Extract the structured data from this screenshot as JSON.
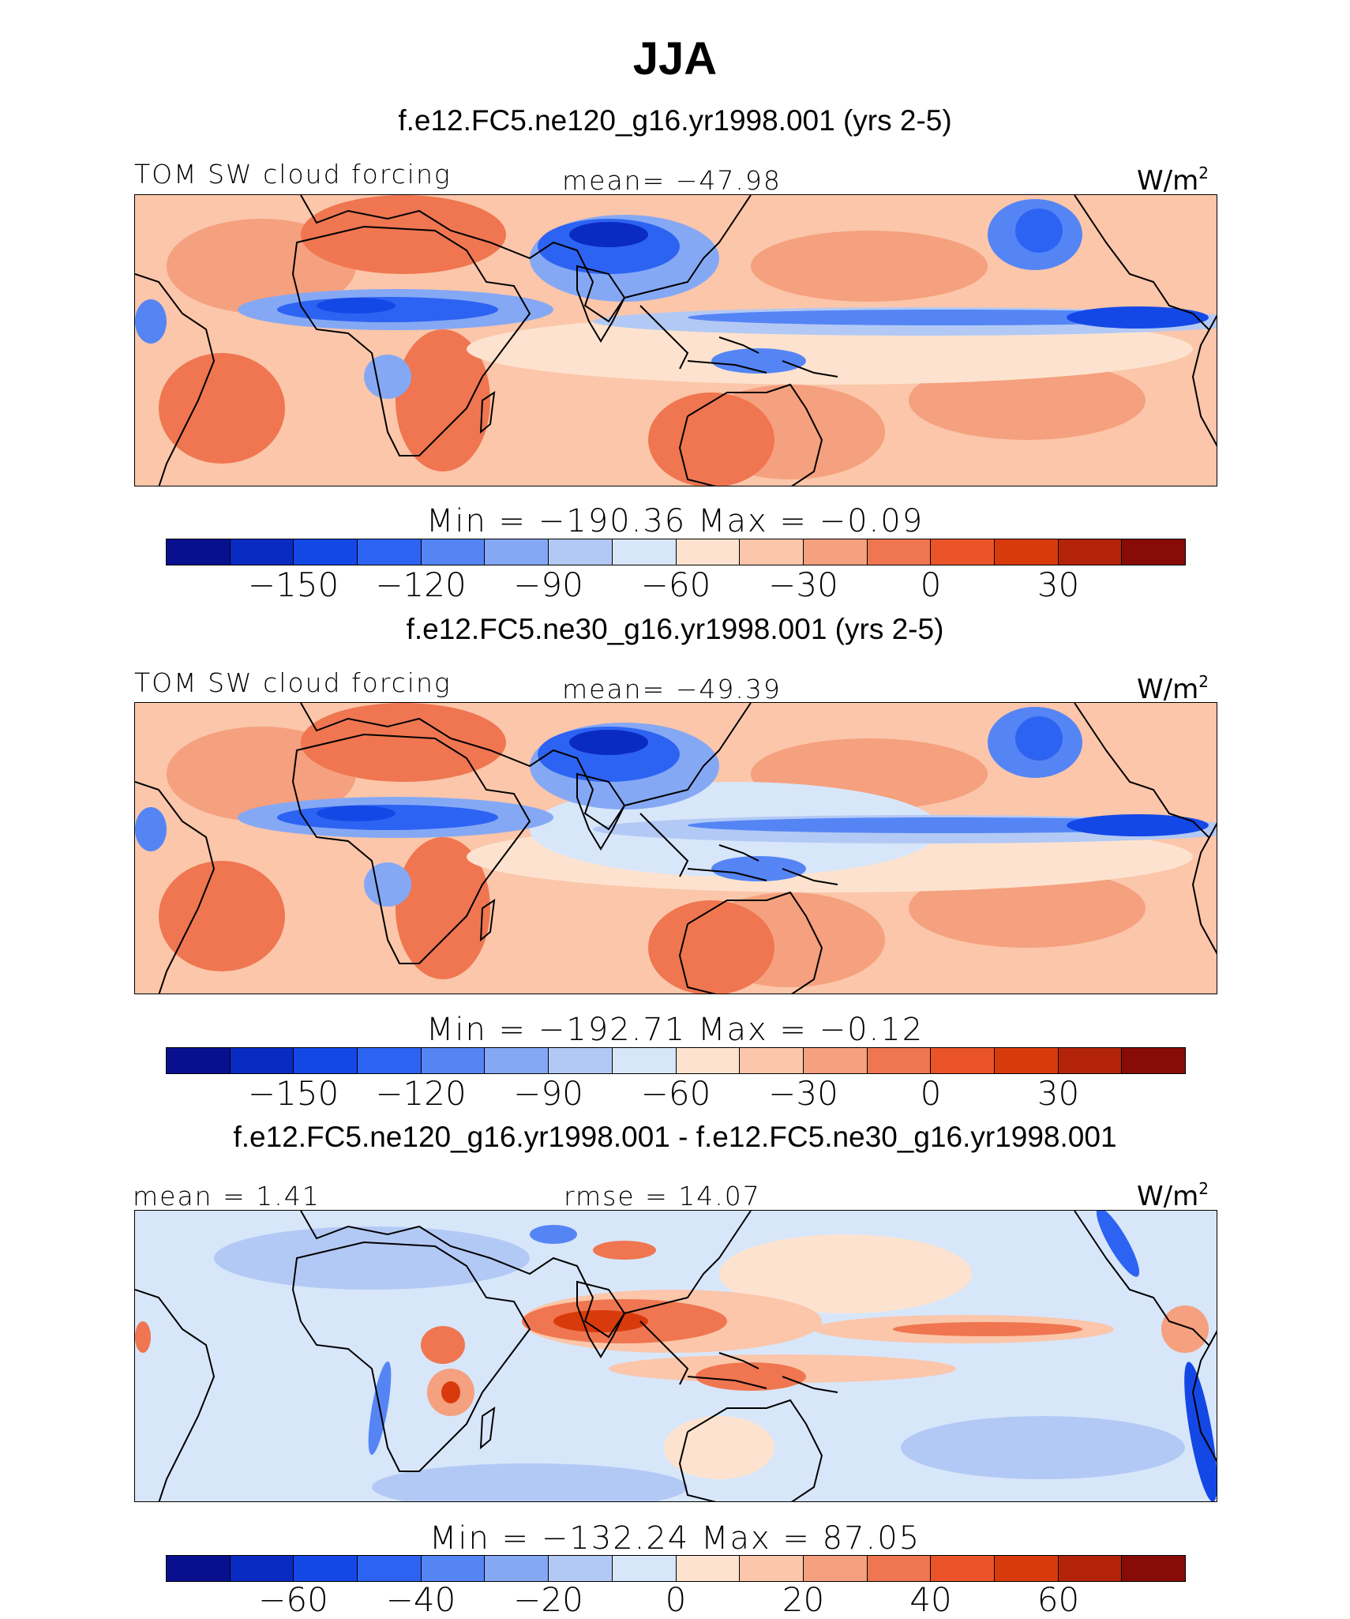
{
  "title": "JJA",
  "panels": [
    {
      "subtitle": "f.e12.FC5.ne120_g16.yr1998.001 (yrs 2-5)",
      "left_label": "TOM  SW  cloud  forcing",
      "center_label": "mean=  −47.98",
      "unit": "W/m",
      "unit_sup": "2",
      "minmax": "Min  =  −190.36  Max  =    −0.09",
      "colorbar_ticks": [
        "−150",
        "−120",
        "−90",
        "−60",
        "−30",
        "0",
        "30"
      ],
      "colorbar_colors": [
        "#08108f",
        "#0a2bc2",
        "#1448e6",
        "#2d63f2",
        "#5585f5",
        "#85a8f5",
        "#b3c9f5",
        "#d8e6fa",
        "#fde3cf",
        "#fbc6aa",
        "#f5a07e",
        "#ef7650",
        "#ea5428",
        "#d93a0c",
        "#b3230a",
        "#870b06"
      ],
      "map": "ne120"
    },
    {
      "subtitle": "f.e12.FC5.ne30_g16.yr1998.001 (yrs 2-5)",
      "left_label": "TOM  SW  cloud  forcing",
      "center_label": "mean=  −49.39",
      "unit": "W/m",
      "unit_sup": "2",
      "minmax": "Min  =  −192.71  Max  =    −0.12",
      "colorbar_ticks": [
        "−150",
        "−120",
        "−90",
        "−60",
        "−30",
        "0",
        "30"
      ],
      "colorbar_colors": [
        "#08108f",
        "#0a2bc2",
        "#1448e6",
        "#2d63f2",
        "#5585f5",
        "#85a8f5",
        "#b3c9f5",
        "#d8e6fa",
        "#fde3cf",
        "#fbc6aa",
        "#f5a07e",
        "#ef7650",
        "#ea5428",
        "#d93a0c",
        "#b3230a",
        "#870b06"
      ],
      "map": "ne30"
    },
    {
      "subtitle": "f.e12.FC5.ne120_g16.yr1998.001 - f.e12.FC5.ne30_g16.yr1998.001",
      "left_label": "mean  =     1.41",
      "center_label": "rmse  =    14.07",
      "unit": "W/m",
      "unit_sup": "2",
      "minmax": "Min  =  −132.24  Max  =    87.05",
      "colorbar_ticks": [
        "−60",
        "−40",
        "−20",
        "0",
        "20",
        "40",
        "60"
      ],
      "colorbar_colors": [
        "#08108f",
        "#0a2bc2",
        "#1448e6",
        "#2d63f2",
        "#5585f5",
        "#85a8f5",
        "#b3c9f5",
        "#d8e6fa",
        "#fde3cf",
        "#fbc6aa",
        "#f5a07e",
        "#ef7650",
        "#ea5428",
        "#d93a0c",
        "#b3230a",
        "#870b06"
      ],
      "map": "diff"
    }
  ]
}
